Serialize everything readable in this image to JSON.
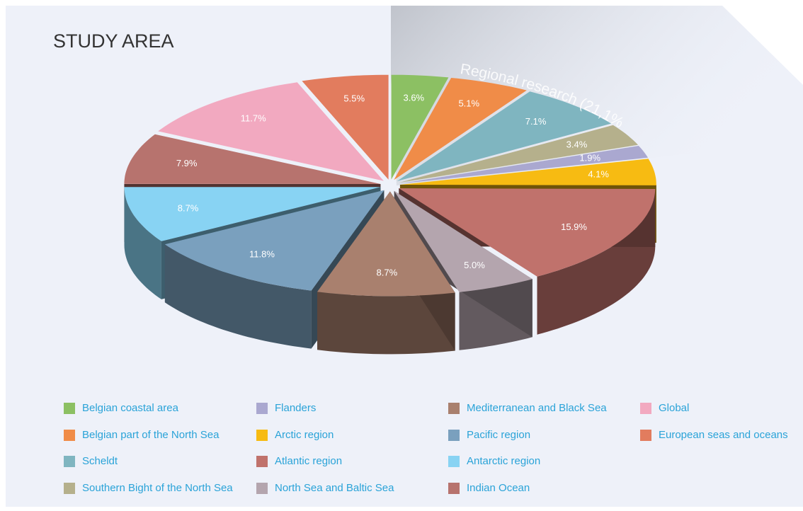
{
  "chart_data": {
    "type": "pie",
    "title": "STUDY AREA",
    "annotation": "Regional research (21,1%)",
    "categories": [
      "Belgian coastal area",
      "Belgian part of the North Sea",
      "Scheldt",
      "Southern Bight of the North Sea",
      "Flanders",
      "Arctic region",
      "Atlantic region",
      "North Sea and Baltic Sea",
      "Mediterranean and Black Sea",
      "Pacific region",
      "Antarctic region",
      "Indian Ocean",
      "Global",
      "European seas and oceans"
    ],
    "values": [
      3.6,
      5.1,
      7.1,
      3.4,
      1.9,
      4.1,
      15.9,
      5.0,
      8.7,
      11.8,
      8.7,
      7.9,
      11.7,
      5.5
    ],
    "value_labels": [
      "3.6%",
      "5.1%",
      "7.1%",
      "3.4%",
      "1.9%",
      "4.1%",
      "15.9%",
      "5.0%",
      "8.7%",
      "11.8%",
      "8.7%",
      "7.9%",
      "11.7%",
      "5.5%"
    ],
    "colors": [
      "#8cc063",
      "#f08c48",
      "#7fb5c0",
      "#b5b08c",
      "#aaa8d0",
      "#f7bb12",
      "#c0726c",
      "#b4a5ae",
      "#a9806e",
      "#7aa0be",
      "#88d3f3",
      "#b7736e",
      "#f2a9c0",
      "#e27c5e"
    ],
    "legend": "bottom"
  }
}
